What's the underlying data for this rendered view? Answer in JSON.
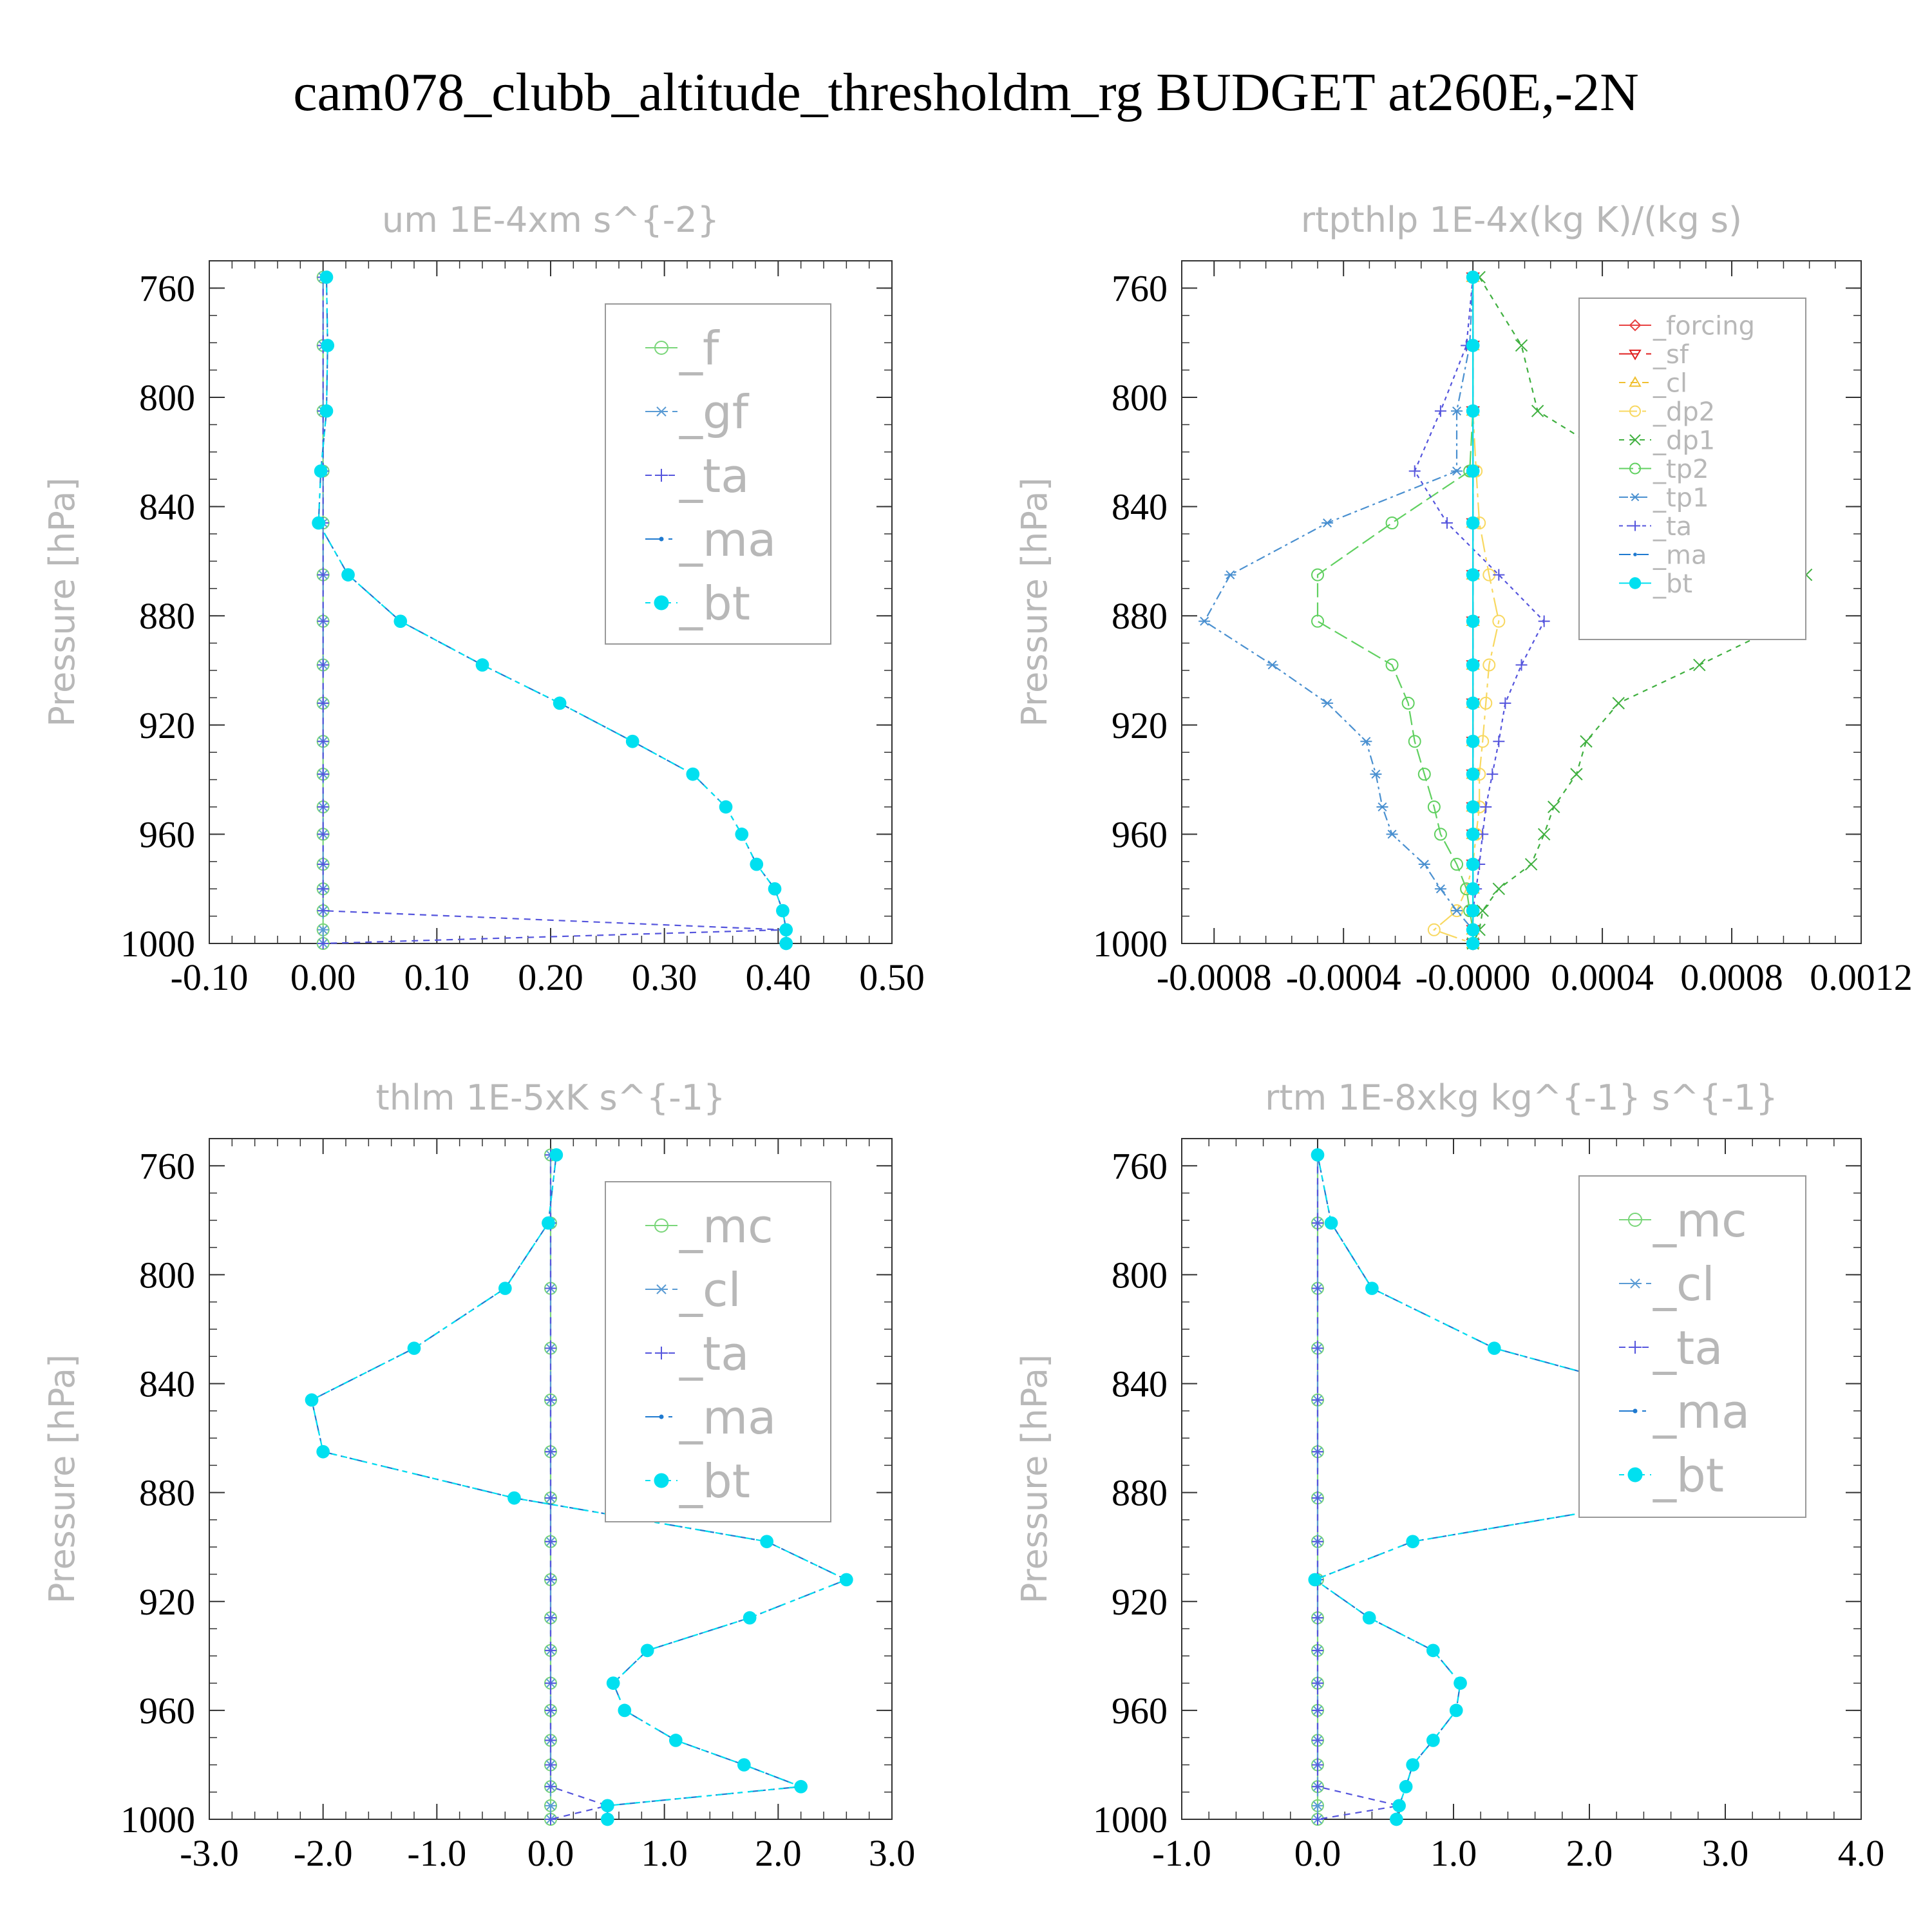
{
  "title": "cam078_clubb_altitude_thresholdm_rg  BUDGET at260E,-2N",
  "chart_data": [
    {
      "type": "line",
      "title": "um  1E-4xm s^{-2}",
      "ylabel": "Pressure [hPa]",
      "y_inverted": true,
      "ylim": [
        1000,
        750
      ],
      "xlim": [
        -0.1,
        0.5
      ],
      "yticks": [
        "760",
        "800",
        "840",
        "880",
        "920",
        "960",
        "1000"
      ],
      "xticks": [
        "-0.10",
        "0.00",
        "0.10",
        "0.20",
        "0.30",
        "0.40",
        "0.50"
      ],
      "legend_position": "top-right",
      "levels": [
        756,
        781,
        805,
        827,
        846,
        865,
        882,
        898,
        912,
        926,
        938,
        950,
        960,
        971,
        980,
        988,
        995,
        1000
      ],
      "series": [
        {
          "name": "_f",
          "color": "#7ad67a",
          "marker": "circle",
          "values": [
            0,
            0,
            0,
            0,
            0,
            0,
            0,
            0,
            0,
            0,
            0,
            0,
            0,
            0,
            0,
            0,
            0,
            0
          ]
        },
        {
          "name": "_gf",
          "color": "#5a9bd4",
          "marker": "asterisk",
          "values": [
            0,
            0,
            0,
            0,
            0,
            0,
            0,
            0,
            0,
            0,
            0,
            0,
            0,
            0,
            0,
            0,
            0,
            0
          ]
        },
        {
          "name": "_ta",
          "color": "#5555dd",
          "marker": "plus",
          "values": [
            0,
            0,
            0,
            0,
            0,
            0,
            0,
            0,
            0,
            0,
            0,
            0,
            0,
            0,
            0,
            0,
            0.405,
            0.0
          ]
        },
        {
          "name": "_ma",
          "color": "#1f7ad0",
          "marker": "dot",
          "values": [
            0.003,
            0.004,
            0.003,
            -0.002,
            -0.004,
            0.022,
            0.068,
            0.14,
            0.208,
            0.272,
            0.325,
            0.354,
            0.368,
            0.381,
            0.397,
            0.404,
            0.407,
            0.407
          ]
        },
        {
          "name": "_bt",
          "color": "#00e0f0",
          "marker": "filled-circle",
          "values": [
            0.003,
            0.004,
            0.003,
            -0.002,
            -0.004,
            0.022,
            0.068,
            0.14,
            0.208,
            0.272,
            0.325,
            0.354,
            0.368,
            0.381,
            0.397,
            0.404,
            0.407,
            0.407
          ]
        }
      ]
    },
    {
      "type": "line",
      "title": "rtpthlp  1E-4x(kg K)/(kg s)",
      "ylabel": "Pressure [hPa]",
      "y_inverted": true,
      "ylim": [
        1000,
        750
      ],
      "xlim": [
        -0.0009,
        0.0012
      ],
      "yticks": [
        "760",
        "800",
        "840",
        "880",
        "920",
        "960",
        "1000"
      ],
      "xticks": [
        "-0.0008",
        "-0.0004",
        "-0.0000",
        "0.0004",
        "0.0008",
        "0.0012"
      ],
      "legend_position": "top-right",
      "levels": [
        756,
        781,
        805,
        827,
        846,
        865,
        882,
        898,
        912,
        926,
        938,
        950,
        960,
        971,
        980,
        988,
        995,
        1000
      ],
      "series": [
        {
          "name": "_forcing",
          "color": "#e84040",
          "marker": "diamond",
          "values": [
            0,
            0,
            0,
            0,
            0,
            0,
            0,
            0,
            0,
            0,
            0,
            0,
            0,
            0,
            0,
            0,
            0,
            0
          ]
        },
        {
          "name": "_sf",
          "color": "#e02020",
          "marker": "triangle-down",
          "values": [
            0,
            0,
            0,
            0,
            0,
            0,
            0,
            0,
            0,
            0,
            0,
            0,
            0,
            0,
            0,
            0,
            0,
            0
          ]
        },
        {
          "name": "_cl",
          "color": "#f0c030",
          "marker": "triangle-up",
          "values": [
            0,
            0,
            0,
            0,
            0,
            0,
            0,
            0,
            0,
            0,
            0,
            0,
            0,
            0,
            0,
            0,
            0,
            0
          ]
        },
        {
          "name": "_dp2",
          "color": "#f8d860",
          "marker": "circle",
          "values": [
            0,
            0,
            0,
            1e-05,
            2e-05,
            5e-05,
            8e-05,
            5e-05,
            4e-05,
            3e-05,
            2e-05,
            2e-05,
            1e-05,
            0,
            -2e-05,
            -5e-05,
            -0.00012,
            0
          ]
        },
        {
          "name": "_dp1",
          "color": "#40b040",
          "marker": "cross",
          "values": [
            2e-05,
            0.00015,
            0.0002,
            0.0005,
            0.0008,
            0.00103,
            0.00098,
            0.0007,
            0.00045,
            0.00035,
            0.00032,
            0.00025,
            0.00022,
            0.00018,
            8e-05,
            3e-05,
            2e-05,
            0
          ]
        },
        {
          "name": "_tp2",
          "color": "#60d060",
          "marker": "circle",
          "values": [
            0,
            0,
            0,
            -1e-05,
            -0.00025,
            -0.00048,
            -0.00048,
            -0.00025,
            -0.0002,
            -0.00018,
            -0.00015,
            -0.00012,
            -0.0001,
            -5e-05,
            -2e-05,
            -1e-05,
            0,
            0
          ]
        },
        {
          "name": "_tp1",
          "color": "#4a90d0",
          "marker": "asterisk",
          "values": [
            0,
            -1e-05,
            -5e-05,
            -5e-05,
            -0.00045,
            -0.00075,
            -0.00083,
            -0.00062,
            -0.00045,
            -0.00033,
            -0.0003,
            -0.00028,
            -0.00025,
            -0.00015,
            -0.0001,
            -5e-05,
            0,
            0
          ]
        },
        {
          "name": "_ta",
          "color": "#5555dd",
          "marker": "plus",
          "values": [
            0,
            -2e-05,
            -0.0001,
            -0.00018,
            -8e-05,
            8e-05,
            0.00022,
            0.00015,
            0.0001,
            8e-05,
            6e-05,
            4e-05,
            3e-05,
            2e-05,
            1e-05,
            0,
            0,
            0
          ]
        },
        {
          "name": "_ma",
          "color": "#1f7ad0",
          "marker": "dot",
          "values": [
            0,
            0,
            0,
            0,
            0,
            0,
            0,
            0,
            0,
            0,
            0,
            0,
            0,
            0,
            0,
            0,
            0,
            0
          ]
        },
        {
          "name": "_bt",
          "color": "#00e0f0",
          "marker": "filled-circle",
          "values": [
            0,
            0,
            0,
            0,
            0,
            0,
            0,
            0,
            0,
            0,
            0,
            0,
            0,
            0,
            0,
            0,
            0,
            0
          ]
        }
      ]
    },
    {
      "type": "line",
      "title": "thlm  1E-5xK s^{-1}",
      "ylabel": "Pressure [hPa]",
      "y_inverted": true,
      "ylim": [
        1000,
        750
      ],
      "xlim": [
        -3.0,
        3.0
      ],
      "yticks": [
        "760",
        "800",
        "840",
        "880",
        "920",
        "960",
        "1000"
      ],
      "xticks": [
        "-3.0",
        "-2.0",
        "-1.0",
        "0.0",
        "1.0",
        "2.0",
        "3.0"
      ],
      "legend_position": "top-right",
      "levels": [
        756,
        781,
        805,
        827,
        846,
        865,
        882,
        898,
        912,
        926,
        938,
        950,
        960,
        971,
        980,
        988,
        995,
        1000
      ],
      "series": [
        {
          "name": "_mc",
          "color": "#7ad67a",
          "marker": "circle",
          "values": [
            0,
            0,
            0,
            0,
            0,
            0,
            0,
            0,
            0,
            0,
            0,
            0,
            0,
            0,
            0,
            0,
            0,
            0
          ]
        },
        {
          "name": "_cl",
          "color": "#5a9bd4",
          "marker": "asterisk",
          "values": [
            0,
            0,
            0,
            0,
            0,
            0,
            0,
            0,
            0,
            0,
            0,
            0,
            0,
            0,
            0,
            0,
            0,
            0
          ]
        },
        {
          "name": "_ta",
          "color": "#5555dd",
          "marker": "plus",
          "values": [
            0,
            0,
            0,
            0,
            0,
            0,
            0,
            0,
            0,
            0,
            0,
            0,
            0,
            0,
            0,
            0,
            0.5,
            0.0
          ]
        },
        {
          "name": "_ma",
          "color": "#1f7ad0",
          "marker": "dot",
          "values": [
            0.05,
            -0.02,
            -0.4,
            -1.2,
            -2.1,
            -2.0,
            -0.32,
            1.9,
            2.6,
            1.75,
            0.85,
            0.55,
            0.65,
            1.1,
            1.7,
            2.2,
            0.5,
            0.5
          ]
        },
        {
          "name": "_bt",
          "color": "#00e0f0",
          "marker": "filled-circle",
          "values": [
            0.05,
            -0.02,
            -0.4,
            -1.2,
            -2.1,
            -2.0,
            -0.32,
            1.9,
            2.6,
            1.75,
            0.85,
            0.55,
            0.65,
            1.1,
            1.7,
            2.2,
            0.5,
            0.5
          ]
        }
      ]
    },
    {
      "type": "line",
      "title": "rtm  1E-8xkg kg^{-1} s^{-1}",
      "ylabel": "Pressure [hPa]",
      "y_inverted": true,
      "ylim": [
        1000,
        750
      ],
      "xlim": [
        -1.0,
        4.0
      ],
      "yticks": [
        "760",
        "800",
        "840",
        "880",
        "920",
        "960",
        "1000"
      ],
      "xticks": [
        "-1.0",
        "0.0",
        "1.0",
        "2.0",
        "3.0",
        "4.0"
      ],
      "legend_position": "top-right",
      "levels": [
        756,
        781,
        805,
        827,
        846,
        865,
        882,
        898,
        912,
        926,
        938,
        950,
        960,
        971,
        980,
        988,
        995,
        1000
      ],
      "series": [
        {
          "name": "_mc",
          "color": "#7ad67a",
          "marker": "circle",
          "values": [
            0,
            0,
            0,
            0,
            0,
            0,
            0,
            0,
            0,
            0,
            0,
            0,
            0,
            0,
            0,
            0,
            0,
            0
          ]
        },
        {
          "name": "_cl",
          "color": "#5a9bd4",
          "marker": "asterisk",
          "values": [
            0,
            0,
            0,
            0,
            0,
            0,
            0,
            0,
            0,
            0,
            0,
            0,
            0,
            0,
            0,
            0,
            0,
            0
          ]
        },
        {
          "name": "_ta",
          "color": "#5555dd",
          "marker": "plus",
          "values": [
            0,
            0,
            0,
            0,
            0,
            0,
            0,
            0,
            0,
            0,
            0,
            0,
            0,
            0,
            0,
            0,
            0.6,
            0.0
          ]
        },
        {
          "name": "_ma",
          "color": "#1f7ad0",
          "marker": "dot",
          "values": [
            0.0,
            0.1,
            0.4,
            1.3,
            2.7,
            3.4,
            2.6,
            0.7,
            -0.02,
            0.38,
            0.85,
            1.05,
            1.02,
            0.85,
            0.7,
            0.65,
            0.6,
            0.58
          ]
        },
        {
          "name": "_bt",
          "color": "#00e0f0",
          "marker": "filled-circle",
          "values": [
            0.0,
            0.1,
            0.4,
            1.3,
            2.7,
            3.4,
            2.6,
            0.7,
            -0.02,
            0.38,
            0.85,
            1.05,
            1.02,
            0.85,
            0.7,
            0.65,
            0.6,
            0.58
          ]
        }
      ]
    }
  ]
}
